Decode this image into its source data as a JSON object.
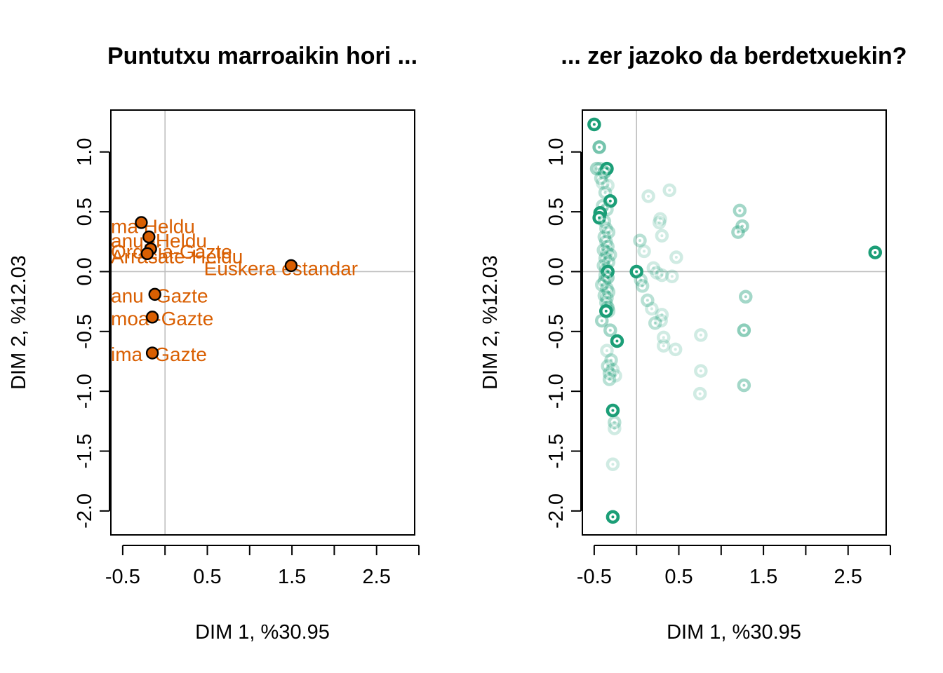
{
  "colors": {
    "brown_point_fill": "#d95f02",
    "brown_label": "#d95f02",
    "green_point": "#1b9e77",
    "axis": "#000000",
    "reference_line": "#bebebe"
  },
  "chart_data": [
    {
      "type": "scatter",
      "title": "Puntutxu marroaikin hori ...",
      "xlabel": "DIM 1, %30.95",
      "ylabel": "DIM 2, %12.03",
      "xlim": [
        -0.64,
        2.95
      ],
      "ylim": [
        -2.2,
        1.35
      ],
      "x_ticks": [
        -0.5,
        0,
        0.5,
        1,
        1.5,
        2,
        2.5,
        3
      ],
      "x_tick_labels": [
        "-0.5",
        "",
        "0.5",
        "",
        "1.5",
        "",
        "2.5",
        ""
      ],
      "y_ticks": [
        1.0,
        0.5,
        0.0,
        -0.5,
        -1.0,
        -1.5,
        -2.0
      ],
      "y_tick_labels": [
        "1.0",
        "0.5",
        "0.0",
        "-0.5",
        "-1.0",
        "-1.5",
        "-2.0"
      ],
      "reference_lines": {
        "x": 0,
        "y": 0
      },
      "points": [
        {
          "label": "Zaldibia-Heldu",
          "x": -0.28,
          "y": 0.41
        },
        {
          "label": "Oiartzun-Heldu",
          "x": -0.19,
          "y": 0.29
        },
        {
          "label": "Ordizia-Gazte",
          "x": -0.17,
          "y": 0.19
        },
        {
          "label": "Arrasate-Heldu",
          "x": -0.21,
          "y": 0.15
        },
        {
          "label": "Euskera estandar",
          "x": 1.49,
          "y": 0.05
        },
        {
          "label": "Oiartzun-Gazte",
          "x": -0.12,
          "y": -0.19
        },
        {
          "label": "Arrasate-Gazte",
          "x": -0.15,
          "y": -0.38
        },
        {
          "label": "Zaldibia-Gazte",
          "x": -0.15,
          "y": -0.68
        }
      ],
      "visible_labels": [
        {
          "text": "ma Heldu",
          "x": -0.64,
          "y": 0.38
        },
        {
          "text": "anu -Heldu",
          "x": -0.64,
          "y": 0.26
        },
        {
          "text": "Ordizia-Gazte",
          "x": -0.64,
          "y": 0.17
        },
        {
          "text": "Arrasate-Heldu",
          "x": -0.64,
          "y": 0.13
        },
        {
          "text": "Euskera estandar",
          "x": 0.46,
          "y": 0.03
        },
        {
          "text": "anu -Gazte",
          "x": -0.64,
          "y": -0.2
        },
        {
          "text": "moa -Gazte",
          "x": -0.64,
          "y": -0.39
        },
        {
          "text": "ima -Gazte",
          "x": -0.64,
          "y": -0.69
        }
      ]
    },
    {
      "type": "scatter",
      "title": "... zer jazoko da berdetxuekin?",
      "xlabel": "DIM 1, %30.95",
      "ylabel": "DIM 2, %12.03",
      "xlim": [
        -0.64,
        2.95
      ],
      "ylim": [
        -2.2,
        1.35
      ],
      "x_ticks": [
        -0.5,
        0,
        0.5,
        1,
        1.5,
        2,
        2.5,
        3
      ],
      "x_tick_labels": [
        "-0.5",
        "",
        "0.5",
        "",
        "1.5",
        "",
        "2.5",
        ""
      ],
      "y_ticks": [
        1.0,
        0.5,
        0.0,
        -0.5,
        -1.0,
        -1.5,
        -2.0
      ],
      "y_tick_labels": [
        "1.0",
        "0.5",
        "0.0",
        "-0.5",
        "-1.0",
        "-1.5",
        "-2.0"
      ],
      "reference_lines": {
        "x": 0,
        "y": 0
      },
      "points": [
        {
          "x": -0.5,
          "y": 1.23,
          "opacity": 1.0
        },
        {
          "x": -0.44,
          "y": 1.04,
          "opacity": 0.6
        },
        {
          "x": -0.47,
          "y": 0.86,
          "opacity": 0.4
        },
        {
          "x": -0.43,
          "y": 0.86,
          "opacity": 0.3
        },
        {
          "x": -0.35,
          "y": 0.86,
          "opacity": 1.0
        },
        {
          "x": -0.38,
          "y": 0.83,
          "opacity": 0.5
        },
        {
          "x": -0.42,
          "y": 0.78,
          "opacity": 0.3
        },
        {
          "x": -0.4,
          "y": 0.74,
          "opacity": 0.2
        },
        {
          "x": -0.34,
          "y": 0.72,
          "opacity": 0.2
        },
        {
          "x": -0.37,
          "y": 0.66,
          "opacity": 0.3
        },
        {
          "x": -0.31,
          "y": 0.59,
          "opacity": 1.0
        },
        {
          "x": -0.4,
          "y": 0.55,
          "opacity": 0.3
        },
        {
          "x": -0.35,
          "y": 0.52,
          "opacity": 0.3
        },
        {
          "x": -0.43,
          "y": 0.49,
          "opacity": 1.0
        },
        {
          "x": -0.44,
          "y": 0.45,
          "opacity": 1.0
        },
        {
          "x": -0.38,
          "y": 0.42,
          "opacity": 0.3
        },
        {
          "x": -0.36,
          "y": 0.36,
          "opacity": 0.3
        },
        {
          "x": -0.33,
          "y": 0.33,
          "opacity": 0.3
        },
        {
          "x": -0.38,
          "y": 0.29,
          "opacity": 0.3
        },
        {
          "x": -0.36,
          "y": 0.25,
          "opacity": 0.3
        },
        {
          "x": -0.34,
          "y": 0.21,
          "opacity": 0.3
        },
        {
          "x": -0.39,
          "y": 0.18,
          "opacity": 0.3
        },
        {
          "x": -0.35,
          "y": 0.16,
          "opacity": 0.3
        },
        {
          "x": -0.31,
          "y": 0.14,
          "opacity": 0.3
        },
        {
          "x": -0.37,
          "y": 0.11,
          "opacity": 0.3
        },
        {
          "x": -0.33,
          "y": 0.08,
          "opacity": 0.3
        },
        {
          "x": -0.39,
          "y": 0.05,
          "opacity": 0.3
        },
        {
          "x": -0.36,
          "y": 0.02,
          "opacity": 0.3
        },
        {
          "x": -0.34,
          "y": 0.0,
          "opacity": 1.0
        },
        {
          "x": -0.37,
          "y": -0.03,
          "opacity": 0.3
        },
        {
          "x": -0.34,
          "y": -0.05,
          "opacity": 0.4
        },
        {
          "x": -0.38,
          "y": -0.08,
          "opacity": 0.3
        },
        {
          "x": -0.41,
          "y": -0.11,
          "opacity": 0.3
        },
        {
          "x": -0.35,
          "y": -0.14,
          "opacity": 0.3
        },
        {
          "x": -0.33,
          "y": -0.17,
          "opacity": 0.3
        },
        {
          "x": -0.38,
          "y": -0.2,
          "opacity": 0.3
        },
        {
          "x": -0.35,
          "y": -0.22,
          "opacity": 0.3
        },
        {
          "x": -0.36,
          "y": -0.26,
          "opacity": 0.3
        },
        {
          "x": -0.34,
          "y": -0.3,
          "opacity": 0.4
        },
        {
          "x": -0.33,
          "y": -0.33,
          "opacity": 0.3
        },
        {
          "x": -0.36,
          "y": -0.33,
          "opacity": 1.0
        },
        {
          "x": -0.41,
          "y": -0.41,
          "opacity": 0.4
        },
        {
          "x": -0.31,
          "y": -0.49,
          "opacity": 0.4
        },
        {
          "x": -0.23,
          "y": -0.58,
          "opacity": 1.0
        },
        {
          "x": -0.35,
          "y": -0.66,
          "opacity": 0.2
        },
        {
          "x": -0.3,
          "y": -0.74,
          "opacity": 0.3
        },
        {
          "x": -0.34,
          "y": -0.79,
          "opacity": 0.3
        },
        {
          "x": -0.28,
          "y": -0.82,
          "opacity": 0.2
        },
        {
          "x": -0.32,
          "y": -0.85,
          "opacity": 0.3
        },
        {
          "x": -0.25,
          "y": -0.87,
          "opacity": 0.2
        },
        {
          "x": -0.32,
          "y": -0.9,
          "opacity": 0.3
        },
        {
          "x": -0.28,
          "y": -1.16,
          "opacity": 1.0
        },
        {
          "x": -0.26,
          "y": -1.26,
          "opacity": 0.3
        },
        {
          "x": -0.26,
          "y": -1.31,
          "opacity": 0.2
        },
        {
          "x": -0.28,
          "y": -1.61,
          "opacity": 0.2
        },
        {
          "x": -0.28,
          "y": -2.05,
          "opacity": 1.0
        },
        {
          "x": 0.0,
          "y": 0.0,
          "opacity": 1.0
        },
        {
          "x": 0.04,
          "y": 0.26,
          "opacity": 0.3
        },
        {
          "x": 0.09,
          "y": 0.17,
          "opacity": 0.2
        },
        {
          "x": 0.14,
          "y": 0.63,
          "opacity": 0.2
        },
        {
          "x": 0.39,
          "y": 0.68,
          "opacity": 0.2
        },
        {
          "x": 0.28,
          "y": 0.44,
          "opacity": 0.2
        },
        {
          "x": 0.27,
          "y": 0.41,
          "opacity": 0.2
        },
        {
          "x": 0.3,
          "y": 0.3,
          "opacity": 0.2
        },
        {
          "x": 0.47,
          "y": 0.12,
          "opacity": 0.2
        },
        {
          "x": 0.2,
          "y": 0.03,
          "opacity": 0.2
        },
        {
          "x": 0.24,
          "y": -0.01,
          "opacity": 0.2
        },
        {
          "x": 0.3,
          "y": -0.03,
          "opacity": 0.2
        },
        {
          "x": 0.42,
          "y": -0.04,
          "opacity": 0.2
        },
        {
          "x": 0.05,
          "y": -0.07,
          "opacity": 0.3
        },
        {
          "x": 0.07,
          "y": -0.12,
          "opacity": 0.3
        },
        {
          "x": 0.13,
          "y": -0.24,
          "opacity": 0.3
        },
        {
          "x": 0.18,
          "y": -0.31,
          "opacity": 0.2
        },
        {
          "x": 0.3,
          "y": -0.36,
          "opacity": 0.2
        },
        {
          "x": 0.29,
          "y": -0.41,
          "opacity": 0.2
        },
        {
          "x": 0.22,
          "y": -0.43,
          "opacity": 0.3
        },
        {
          "x": 0.32,
          "y": -0.55,
          "opacity": 0.2
        },
        {
          "x": 0.32,
          "y": -0.62,
          "opacity": 0.2
        },
        {
          "x": 0.46,
          "y": -0.65,
          "opacity": 0.2
        },
        {
          "x": 0.76,
          "y": -0.53,
          "opacity": 0.2
        },
        {
          "x": 0.76,
          "y": -0.83,
          "opacity": 0.2
        },
        {
          "x": 0.75,
          "y": -1.02,
          "opacity": 0.2
        },
        {
          "x": 1.22,
          "y": 0.51,
          "opacity": 0.4
        },
        {
          "x": 1.25,
          "y": 0.38,
          "opacity": 0.4
        },
        {
          "x": 1.2,
          "y": 0.33,
          "opacity": 0.4
        },
        {
          "x": 1.29,
          "y": -0.21,
          "opacity": 0.4
        },
        {
          "x": 1.27,
          "y": -0.49,
          "opacity": 0.5
        },
        {
          "x": 1.27,
          "y": -0.95,
          "opacity": 0.4
        },
        {
          "x": 2.82,
          "y": 0.16,
          "opacity": 1.0
        }
      ]
    }
  ]
}
